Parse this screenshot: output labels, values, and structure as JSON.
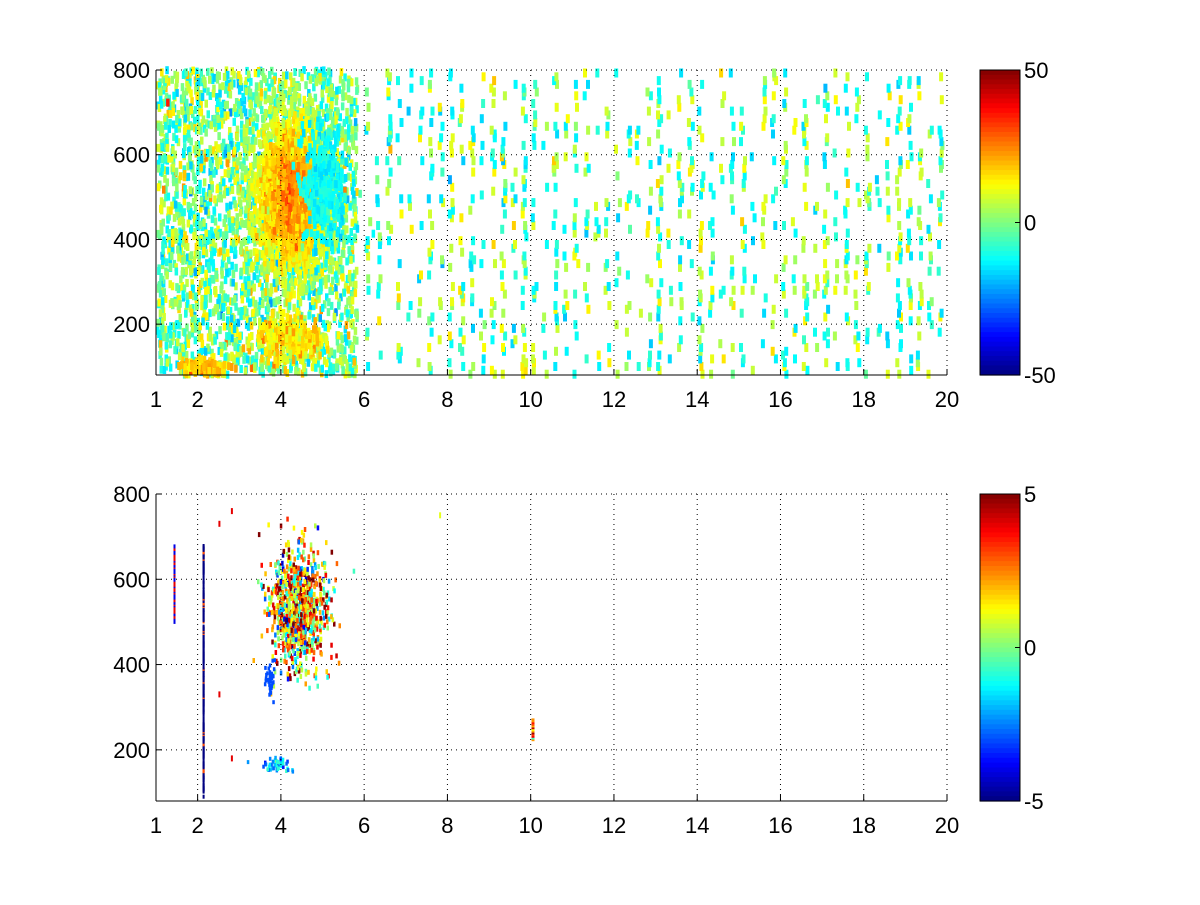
{
  "chart_data": [
    {
      "type": "heatmap",
      "title": "",
      "xlabel": "",
      "ylabel": "",
      "xlim": [
        1,
        20
      ],
      "ylim": [
        80,
        800
      ],
      "x_ticks": [
        "1",
        "2",
        "4",
        "6",
        "8",
        "10",
        "12",
        "14",
        "16",
        "18",
        "20"
      ],
      "x_tick_values": [
        1,
        2,
        4,
        6,
        8,
        10,
        12,
        14,
        16,
        18,
        20
      ],
      "y_ticks": [
        "200",
        "400",
        "600",
        "800"
      ],
      "y_tick_values": [
        200,
        400,
        600,
        800
      ],
      "grid": true,
      "colormap": "jet",
      "colorbar": {
        "min": -50,
        "max": 50,
        "ticks": [
          "50",
          "0",
          "-50"
        ],
        "tick_values": [
          50,
          0,
          -50
        ]
      },
      "hotspots": [
        {
          "x": 4.2,
          "y": 500,
          "value": 28,
          "note": "dense warm cluster"
        },
        {
          "x": 5.0,
          "y": 520,
          "value": -12
        },
        {
          "x": 4.2,
          "y": 160,
          "value": 15
        },
        {
          "x": 2.1,
          "y": 95,
          "value": 18
        }
      ],
      "pattern": "dense speckle at x 1-6, sparse vertical streaks at x 6-20, values mostly -15 to 25"
    },
    {
      "type": "heatmap",
      "title": "",
      "xlabel": "",
      "ylabel": "",
      "xlim": [
        1,
        20
      ],
      "ylim": [
        80,
        800
      ],
      "x_ticks": [
        "1",
        "2",
        "4",
        "6",
        "8",
        "10",
        "12",
        "14",
        "16",
        "18",
        "20"
      ],
      "x_tick_values": [
        1,
        2,
        4,
        6,
        8,
        10,
        12,
        14,
        16,
        18,
        20
      ],
      "y_ticks": [
        "200",
        "400",
        "600",
        "800"
      ],
      "y_tick_values": [
        200,
        400,
        600,
        800
      ],
      "grid": true,
      "colormap": "jet",
      "colorbar": {
        "min": -5,
        "max": 5,
        "ticks": [
          "5",
          "0",
          "-5"
        ],
        "tick_values": [
          5,
          0,
          -5
        ]
      },
      "hotspots": [
        {
          "x": 4.4,
          "y": 530,
          "value": 3,
          "note": "mixed-sign cluster"
        },
        {
          "x": 2.1,
          "y": 380,
          "value": -5,
          "note": "thin vertical line"
        },
        {
          "x": 1.4,
          "y": 590,
          "value": -4
        },
        {
          "x": 10.0,
          "y": 245,
          "value": 3
        },
        {
          "x": 3.9,
          "y": 165,
          "value": -2
        }
      ],
      "pattern": "mostly empty; scattered nonzero pixels near x 1-6 and a small patch at x 10"
    }
  ]
}
